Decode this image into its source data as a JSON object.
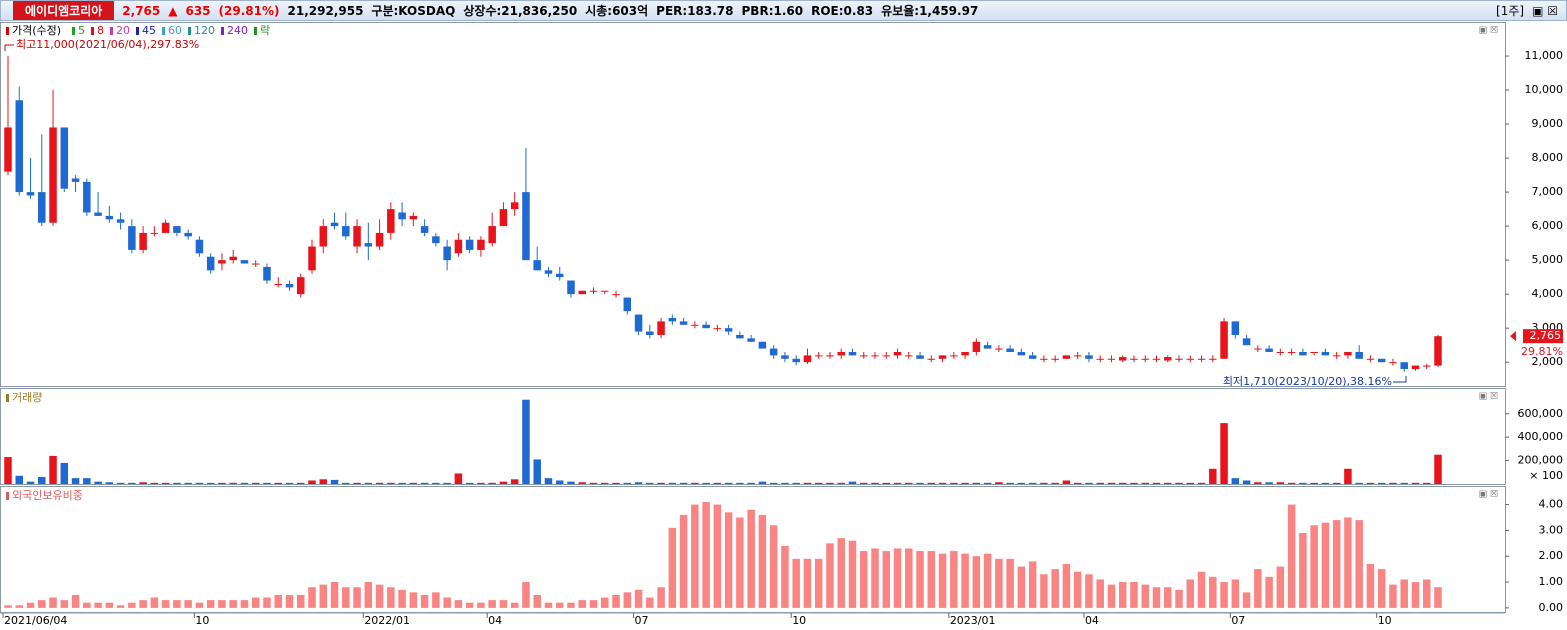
{
  "header": {
    "name": "에이디엠코리아",
    "price": "2,765",
    "change": "635",
    "change_pct": "(29.81%)",
    "volume": "21,292,955",
    "market": "구분:KOSDAQ",
    "shares": "상장수:21,836,250",
    "market_cap": "시총:603억",
    "per": "PER:183.78",
    "pbr": "PBR:1.60",
    "roe": "ROE:0.83",
    "reserve_ratio": "유보율:1,459.97",
    "period": "[1주]"
  },
  "chart_data": [
    {
      "type": "candlestick",
      "title": "가격(수정)",
      "ma_legend": [
        {
          "name": "5",
          "color": "#22a022"
        },
        {
          "name": "8",
          "color": "#e01010"
        },
        {
          "name": "20",
          "color": "#c03cb0"
        },
        {
          "name": "45",
          "color": "#1a22b0"
        },
        {
          "name": "60",
          "color": "#40a0d0"
        },
        {
          "name": "120",
          "color": "#209090"
        },
        {
          "name": "240",
          "color": "#8020c0"
        },
        {
          "name": "락",
          "color": "#209020"
        }
      ],
      "high_note": "최고11,000(2021/06/04),297.83%",
      "low_note": "최저1,710(2023/10/20),38.16%",
      "last_label": "2,765",
      "change_label": "29.81%",
      "up_color": "#e8141c",
      "down_color": "#1e6ad2",
      "categories": [
        "2021/06/04",
        null,
        null,
        null,
        null,
        null,
        null,
        null,
        null,
        null,
        null,
        null,
        null,
        null,
        null,
        null,
        null,
        "10",
        null,
        null,
        null,
        null,
        null,
        null,
        null,
        null,
        null,
        null,
        null,
        null,
        null,
        null,
        "2022/01",
        null,
        null,
        null,
        null,
        null,
        null,
        null,
        null,
        null,
        null,
        "04",
        null,
        null,
        null,
        null,
        null,
        null,
        null,
        null,
        null,
        null,
        null,
        null,
        "07",
        null,
        null,
        null,
        null,
        null,
        null,
        null,
        null,
        null,
        null,
        null,
        null,
        null,
        "10",
        null,
        null,
        null,
        null,
        null,
        null,
        null,
        null,
        null,
        null,
        null,
        null,
        null,
        "2023/01",
        null,
        null,
        null,
        null,
        null,
        null,
        null,
        null,
        null,
        null,
        null,
        "04",
        null,
        null,
        null,
        null,
        null,
        null,
        null,
        null,
        null,
        null,
        null,
        null,
        "07",
        null,
        null,
        null,
        null,
        null,
        null,
        null,
        null,
        null,
        null,
        null,
        null,
        "10",
        null,
        null,
        null,
        null,
        null
      ],
      "open": [
        7600,
        9700,
        7000,
        7000,
        6100,
        8900,
        7400,
        7300,
        6400,
        6300,
        6200,
        6000,
        5300,
        5800,
        5800,
        6000,
        5800,
        5600,
        5100,
        4900,
        5000,
        5000,
        4900,
        4800,
        4300,
        4300,
        4000,
        4700,
        5400,
        6100,
        6000,
        5400,
        5500,
        5400,
        5800,
        6400,
        6200,
        6000,
        5700,
        5400,
        5200,
        5600,
        5300,
        5500,
        6000,
        6500,
        7000,
        5000,
        4700,
        4600,
        4400,
        4000,
        4100,
        4100,
        4000,
        3900,
        3400,
        2900,
        2800,
        3300,
        3200,
        3100,
        3100,
        3000,
        3000,
        2800,
        2700,
        2600,
        2400,
        2200,
        2100,
        2000,
        2200,
        2200,
        2200,
        2300,
        2200,
        2200,
        2200,
        2200,
        2200,
        2200,
        2100,
        2100,
        2200,
        2200,
        2300,
        2500,
        2400,
        2400,
        2300,
        2200,
        2100,
        2100,
        2100,
        2200,
        2200,
        2100,
        2100,
        2050,
        2100,
        2100,
        2100,
        2050,
        2100,
        2100,
        2100,
        2100,
        2100,
        3200,
        2700,
        2400,
        2400,
        2300,
        2300,
        2300,
        2300,
        2300,
        2200,
        2200,
        2300,
        2100,
        2100,
        2000,
        2000,
        1800,
        1900,
        1900
      ],
      "high": [
        11000,
        10100,
        8000,
        8700,
        10000,
        8900,
        7500,
        7400,
        7000,
        6600,
        6400,
        6200,
        6000,
        6000,
        6200,
        6000,
        5900,
        5700,
        5200,
        5200,
        5300,
        5000,
        5000,
        4900,
        4500,
        4400,
        4600,
        5600,
        6200,
        6400,
        6400,
        6200,
        6100,
        6200,
        6700,
        6700,
        6400,
        6200,
        5800,
        5600,
        5800,
        5700,
        5700,
        6400,
        6700,
        7000,
        8300,
        5400,
        4800,
        4800,
        4400,
        4100,
        4200,
        4100,
        4100,
        3900,
        3400,
        3100,
        3300,
        3400,
        3300,
        3200,
        3200,
        3100,
        3100,
        2900,
        2800,
        2600,
        2500,
        2300,
        2200,
        2400,
        2300,
        2300,
        2400,
        2400,
        2300,
        2300,
        2300,
        2400,
        2300,
        2300,
        2200,
        2200,
        2300,
        2300,
        2700,
        2600,
        2500,
        2500,
        2400,
        2300,
        2200,
        2200,
        2200,
        2300,
        2300,
        2200,
        2200,
        2200,
        2200,
        2200,
        2200,
        2200,
        2200,
        2200,
        2200,
        2200,
        3300,
        3200,
        2800,
        2500,
        2500,
        2400,
        2400,
        2400,
        2300,
        2400,
        2300,
        2300,
        2500,
        2200,
        2100,
        2100,
        2000,
        1900,
        1950,
        2800
      ],
      "low": [
        7500,
        6900,
        6800,
        6000,
        6000,
        7000,
        7000,
        6300,
        6300,
        6100,
        5900,
        5200,
        5200,
        5700,
        5800,
        5700,
        5600,
        5100,
        4600,
        4700,
        4900,
        4900,
        4800,
        4300,
        4200,
        4100,
        3900,
        4600,
        5200,
        5900,
        5600,
        5200,
        5000,
        5300,
        5600,
        6000,
        6000,
        5700,
        5400,
        4700,
        5100,
        5200,
        5100,
        5400,
        6000,
        6300,
        5000,
        4700,
        4500,
        4400,
        3900,
        4000,
        4000,
        4000,
        3900,
        3400,
        2800,
        2700,
        2700,
        3100,
        3100,
        3000,
        3000,
        2900,
        2800,
        2700,
        2600,
        2400,
        2100,
        2000,
        1900,
        1950,
        2100,
        2100,
        2100,
        2200,
        2100,
        2100,
        2100,
        2100,
        2100,
        2100,
        2000,
        2000,
        2100,
        2100,
        2200,
        2400,
        2300,
        2300,
        2200,
        2100,
        2000,
        2000,
        2100,
        2100,
        2000,
        2000,
        2000,
        2000,
        2000,
        2000,
        2000,
        2000,
        2000,
        2000,
        2000,
        2000,
        2100,
        2700,
        2500,
        2300,
        2300,
        2200,
        2200,
        2200,
        2200,
        2200,
        2100,
        2100,
        2100,
        2000,
        2000,
        1900,
        1710,
        1750,
        1800,
        1850
      ],
      "close": [
        8900,
        7000,
        6900,
        6100,
        8900,
        7100,
        7300,
        6400,
        6300,
        6200,
        6100,
        5300,
        5800,
        5800,
        6100,
        5800,
        5700,
        5200,
        4700,
        5000,
        5100,
        4900,
        4900,
        4400,
        4300,
        4200,
        4500,
        5400,
        6000,
        6000,
        5700,
        6000,
        5400,
        5800,
        6500,
        6200,
        6300,
        5800,
        5500,
        5000,
        5600,
        5300,
        5600,
        6000,
        6500,
        6700,
        5000,
        4700,
        4600,
        4500,
        4000,
        4100,
        4100,
        4100,
        4000,
        3500,
        2900,
        2800,
        3200,
        3200,
        3100,
        3100,
        3000,
        3000,
        2900,
        2700,
        2600,
        2400,
        2200,
        2100,
        2000,
        2200,
        2200,
        2200,
        2300,
        2200,
        2200,
        2200,
        2200,
        2300,
        2200,
        2100,
        2100,
        2200,
        2200,
        2300,
        2600,
        2400,
        2400,
        2300,
        2200,
        2100,
        2100,
        2100,
        2200,
        2200,
        2100,
        2100,
        2100,
        2150,
        2100,
        2100,
        2100,
        2150,
        2100,
        2100,
        2100,
        2100,
        3200,
        2800,
        2500,
        2400,
        2300,
        2300,
        2300,
        2200,
        2300,
        2200,
        2200,
        2300,
        2100,
        2100,
        2000,
        2000,
        1800,
        1900,
        1900,
        2765
      ],
      "ylim": [
        1300,
        12000
      ],
      "yticks": [
        {
          "value": 2000,
          "label": "2,000"
        },
        {
          "value": 3000,
          "label": "3,000"
        },
        {
          "value": 4000,
          "label": "4,000"
        },
        {
          "value": 5000,
          "label": "5,000"
        },
        {
          "value": 6000,
          "label": "6,000"
        },
        {
          "value": 7000,
          "label": "7,000"
        },
        {
          "value": 8000,
          "label": "8,000"
        },
        {
          "value": 9000,
          "label": "9,000"
        },
        {
          "value": 10000,
          "label": "10,000"
        },
        {
          "value": 11000,
          "label": "11,000"
        }
      ]
    },
    {
      "type": "bar",
      "title": "거래량",
      "title_color": "#9a7a20",
      "unit_label": "× 100",
      "values": [
        230000,
        70000,
        20000,
        60000,
        240000,
        180000,
        50000,
        50000,
        20000,
        15000,
        10000,
        10000,
        15000,
        10000,
        10000,
        10000,
        10000,
        10000,
        10000,
        10000,
        10000,
        10000,
        10000,
        10000,
        10000,
        10000,
        10000,
        30000,
        40000,
        35000,
        10000,
        10000,
        10000,
        10000,
        10000,
        10000,
        10000,
        10000,
        10000,
        10000,
        90000,
        10000,
        10000,
        10000,
        20000,
        40000,
        720000,
        210000,
        50000,
        30000,
        20000,
        15000,
        10000,
        10000,
        10000,
        10000,
        15000,
        10000,
        10000,
        10000,
        10000,
        10000,
        10000,
        10000,
        10000,
        10000,
        10000,
        20000,
        10000,
        10000,
        10000,
        10000,
        10000,
        10000,
        10000,
        20000,
        10000,
        10000,
        10000,
        10000,
        10000,
        10000,
        10000,
        10000,
        10000,
        10000,
        10000,
        10000,
        15000,
        10000,
        10000,
        10000,
        10000,
        10000,
        30000,
        10000,
        10000,
        10000,
        10000,
        10000,
        10000,
        10000,
        10000,
        10000,
        10000,
        10000,
        10000,
        130000,
        520000,
        50000,
        30000,
        15000,
        15000,
        15000,
        10000,
        10000,
        10000,
        10000,
        10000,
        130000,
        10000,
        10000,
        10000,
        10000,
        10000,
        10000,
        10000,
        250000
      ],
      "ylim": [
        0,
        820000
      ],
      "yticks": [
        {
          "value": 200000,
          "label": "200,000"
        },
        {
          "value": 400000,
          "label": "400,000"
        },
        {
          "value": 600000,
          "label": "600,000"
        }
      ]
    },
    {
      "type": "bar",
      "title": "외국인보유비중",
      "title_color": "#e05a5a",
      "color": "#f98484",
      "values": [
        0.1,
        0.1,
        0.2,
        0.3,
        0.4,
        0.3,
        0.5,
        0.2,
        0.2,
        0.2,
        0.1,
        0.2,
        0.3,
        0.4,
        0.3,
        0.3,
        0.3,
        0.2,
        0.3,
        0.3,
        0.3,
        0.3,
        0.4,
        0.4,
        0.5,
        0.5,
        0.5,
        0.8,
        0.9,
        1.0,
        0.8,
        0.8,
        1.0,
        0.9,
        0.8,
        0.7,
        0.6,
        0.5,
        0.6,
        0.4,
        0.3,
        0.2,
        0.2,
        0.3,
        0.3,
        0.2,
        1.0,
        0.5,
        0.2,
        0.2,
        0.2,
        0.3,
        0.3,
        0.4,
        0.5,
        0.6,
        0.7,
        0.4,
        0.8,
        3.1,
        3.6,
        4.0,
        4.1,
        4.0,
        3.7,
        3.5,
        3.8,
        3.6,
        3.2,
        2.4,
        1.9,
        1.9,
        1.9,
        2.5,
        2.7,
        2.6,
        2.2,
        2.3,
        2.2,
        2.3,
        2.3,
        2.2,
        2.2,
        2.1,
        2.2,
        2.1,
        2.0,
        2.1,
        1.9,
        1.9,
        1.6,
        1.8,
        1.3,
        1.5,
        1.7,
        1.4,
        1.3,
        1.1,
        0.9,
        1.0,
        1.0,
        0.9,
        0.8,
        0.8,
        0.7,
        1.1,
        1.4,
        1.2,
        1.0,
        1.1,
        0.6,
        1.5,
        1.2,
        1.6,
        4.0,
        2.9,
        3.2,
        3.3,
        3.4,
        3.5,
        3.4,
        1.7,
        1.5,
        0.9,
        1.1,
        1.0,
        1.1,
        0.8
      ],
      "ylim": [
        -0.16,
        4.72
      ],
      "yticks": [
        {
          "value": 0,
          "label": "0.00"
        },
        {
          "value": 1,
          "label": "1.00"
        },
        {
          "value": 2,
          "label": "2.00"
        },
        {
          "value": 3,
          "label": "3.00"
        },
        {
          "value": 4,
          "label": "4.00"
        }
      ]
    }
  ]
}
